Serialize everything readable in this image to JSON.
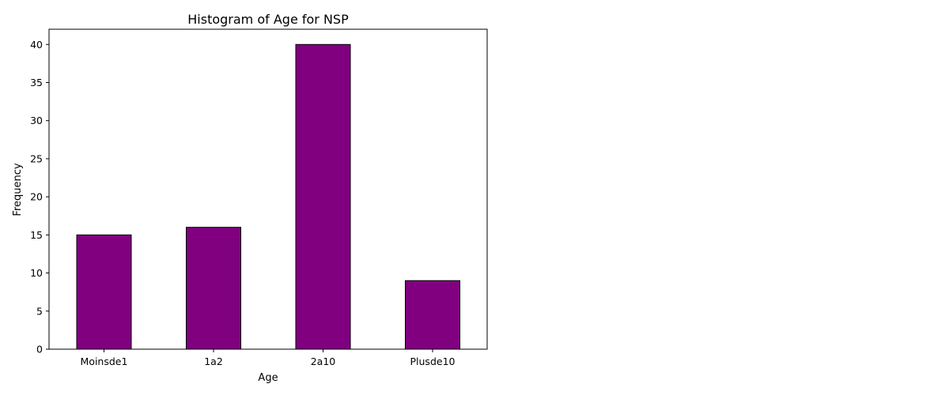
{
  "chart_data": {
    "type": "bar",
    "title": "Histogram of Age for NSP",
    "xlabel": "Age",
    "ylabel": "Frequency",
    "categories": [
      "Moinsde1",
      "1a2",
      "2a10",
      "Plusde10"
    ],
    "values": [
      15,
      16,
      40,
      9
    ],
    "ylim": [
      0,
      42
    ],
    "yticks": [
      0,
      5,
      10,
      15,
      20,
      25,
      30,
      35,
      40
    ],
    "grid": false,
    "bar_color": "#800080",
    "edge_color": "#000000"
  }
}
